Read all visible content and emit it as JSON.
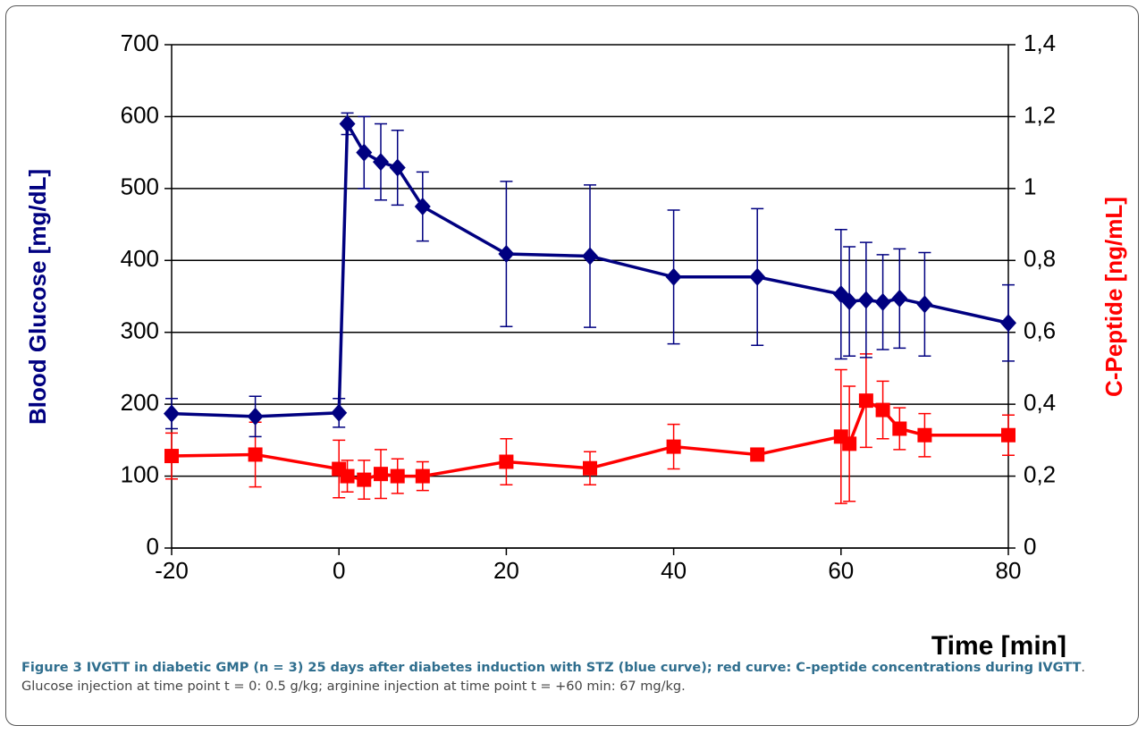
{
  "chart_data": {
    "type": "line",
    "xlabel": "Time [min]",
    "ylabel": "Blood Glucose [mg/dL]",
    "y2label": "C-Peptide [ng/mL]",
    "x": [
      -20,
      -10,
      0,
      1,
      3,
      5,
      7,
      10,
      20,
      30,
      40,
      50,
      60,
      61,
      63,
      65,
      67,
      70,
      80
    ],
    "series": [
      {
        "color": "#000080",
        "marker": "diamond",
        "axis": "y",
        "values": [
          187,
          183,
          188,
          590,
          550,
          537,
          529,
          475,
          409,
          406,
          377,
          377,
          353,
          343,
          345,
          342,
          347,
          339,
          313
        ],
        "errors": [
          21,
          28,
          20,
          15,
          50,
          53,
          52,
          48,
          101,
          99,
          93,
          95,
          90,
          76,
          80,
          66,
          69,
          72,
          53
        ]
      },
      {
        "color": "#ff0000",
        "marker": "square",
        "axis": "y2",
        "values": [
          0.256,
          0.26,
          0.22,
          0.2,
          0.19,
          0.206,
          0.2,
          0.2,
          0.24,
          0.222,
          0.282,
          0.26,
          0.31,
          0.29,
          0.41,
          0.384,
          0.332,
          0.314,
          0.314
        ],
        "errors": [
          0.064,
          0.09,
          0.08,
          0.044,
          0.054,
          0.068,
          0.048,
          0.04,
          0.064,
          0.046,
          0.062,
          null,
          0.186,
          0.16,
          0.13,
          0.08,
          0.058,
          0.06,
          0.056
        ]
      }
    ],
    "xlim": [
      -20,
      80
    ],
    "xticks": [
      -20,
      0,
      20,
      40,
      60,
      80
    ],
    "ylim": [
      0,
      700
    ],
    "yticks": [
      0,
      100,
      200,
      300,
      400,
      500,
      600,
      700
    ],
    "y2lim": [
      0,
      1.4
    ],
    "y2ticks": [
      0,
      {
        "value": 0.2,
        "label": "0,2"
      },
      {
        "value": 0.4,
        "label": "0,4"
      },
      {
        "value": 0.6,
        "label": "0,6"
      },
      {
        "value": 0.8,
        "label": "0,8"
      },
      1,
      {
        "value": 1.2,
        "label": "1,2"
      },
      {
        "value": 1.4,
        "label": "1,4"
      }
    ],
    "grid": true
  },
  "caption": {
    "bold": "Figure 3 IVGTT in diabetic GMP (n = 3) 25 days after diabetes induction with STZ (blue curve); red curve: C-peptide concentrations during IVGTT",
    "text": ". Glucose injection at time point t = 0: 0.5 g/kg; arginine injection at time point t = +60 min: 67 mg/kg."
  }
}
